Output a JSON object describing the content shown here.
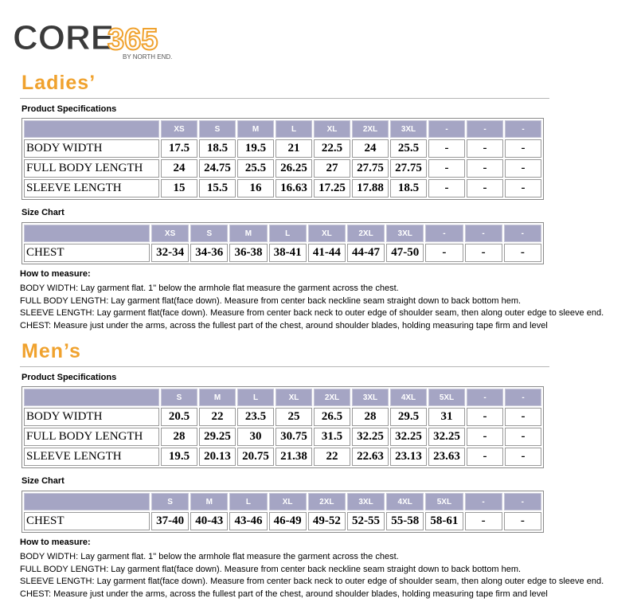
{
  "logo": {
    "brand": "CORE",
    "number": "365",
    "tagline": "BY NORTH END."
  },
  "sections": [
    {
      "title": "Ladies’",
      "spec_label": "Product Specifications",
      "spec_table": {
        "header": [
          "XS",
          "S",
          "M",
          "L",
          "XL",
          "2XL",
          "3XL",
          "-",
          "-",
          "-"
        ],
        "rows": [
          {
            "label": "BODY WIDTH",
            "cells": [
              "17.5",
              "18.5",
              "19.5",
              "21",
              "22.5",
              "24",
              "25.5",
              "-",
              "-",
              "-"
            ]
          },
          {
            "label": "FULL BODY LENGTH",
            "cells": [
              "24",
              "24.75",
              "25.5",
              "26.25",
              "27",
              "27.75",
              "27.75",
              "-",
              "-",
              "-"
            ]
          },
          {
            "label": "SLEEVE LENGTH",
            "cells": [
              "15",
              "15.5",
              "16",
              "16.63",
              "17.25",
              "17.88",
              "18.5",
              "-",
              "-",
              "-"
            ]
          }
        ]
      },
      "size_label": "Size Chart",
      "size_table": {
        "header": [
          "XS",
          "S",
          "M",
          "L",
          "XL",
          "2XL",
          "3XL",
          "-",
          "-",
          "-"
        ],
        "rows": [
          {
            "label": "CHEST",
            "cells": [
              "32-34",
              "34-36",
              "36-38",
              "38-41",
              "41-44",
              "44-47",
              "47-50",
              "-",
              "-",
              "-"
            ]
          }
        ]
      },
      "measure_label": "How to measure:",
      "measure_lines": [
        "BODY WIDTH: Lay garment flat. 1\" below the armhole flat measure the garment across the chest.",
        "FULL BODY LENGTH: Lay garment flat(face down). Measure from center back neckline seam straight down to back bottom hem.",
        "SLEEVE LENGTH: Lay garment flat(face down). Measure from center back neck to outer edge of shoulder seam, then along outer edge to sleeve end.",
        "CHEST: Measure just under the arms, across the fullest part of the chest, around shoulder blades, holding measuring tape firm and level"
      ]
    },
    {
      "title": "Men’s",
      "spec_label": "Product Specifications",
      "spec_table": {
        "header": [
          "S",
          "M",
          "L",
          "XL",
          "2XL",
          "3XL",
          "4XL",
          "5XL",
          "-",
          "-"
        ],
        "rows": [
          {
            "label": "BODY WIDTH",
            "cells": [
              "20.5",
              "22",
              "23.5",
              "25",
              "26.5",
              "28",
              "29.5",
              "31",
              "-",
              "-"
            ]
          },
          {
            "label": "FULL BODY LENGTH",
            "cells": [
              "28",
              "29.25",
              "30",
              "30.75",
              "31.5",
              "32.25",
              "32.25",
              "32.25",
              "-",
              "-"
            ]
          },
          {
            "label": "SLEEVE LENGTH",
            "cells": [
              "19.5",
              "20.13",
              "20.75",
              "21.38",
              "22",
              "22.63",
              "23.13",
              "23.63",
              "-",
              "-"
            ]
          }
        ]
      },
      "size_label": "Size Chart",
      "size_table": {
        "header": [
          "S",
          "M",
          "L",
          "XL",
          "2XL",
          "3XL",
          "4XL",
          "5XL",
          "-",
          "-"
        ],
        "rows": [
          {
            "label": "CHEST",
            "cells": [
              "37-40",
              "40-43",
              "43-46",
              "46-49",
              "49-52",
              "52-55",
              "55-58",
              "58-61",
              "-",
              "-"
            ]
          }
        ]
      },
      "measure_label": "How to measure:",
      "measure_lines": [
        "BODY WIDTH: Lay garment flat. 1\" below the armhole flat measure the garment across the chest.",
        "FULL BODY LENGTH: Lay garment flat(face down). Measure from center back neckline seam straight down to back bottom hem.",
        "SLEEVE LENGTH: Lay garment flat(face down). Measure from center back neck to outer edge of shoulder seam, then along outer edge to sleeve end.",
        "CHEST: Measure just under the arms, across the fullest part of the chest, around shoulder blades, holding measuring tape firm and level"
      ]
    }
  ]
}
